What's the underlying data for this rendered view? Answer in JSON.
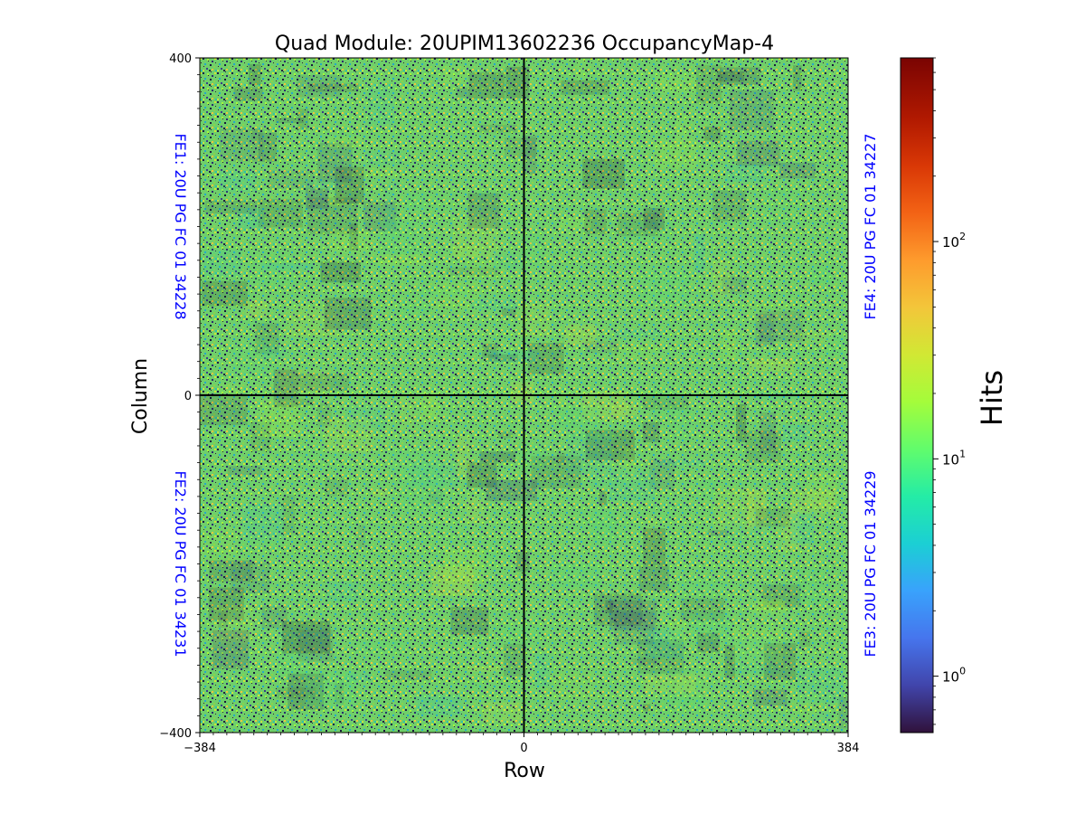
{
  "chart_data": {
    "type": "heatmap",
    "title": "Quad Module: 20UPIM13602236 OccupancyMap-4",
    "xlabel": "Row",
    "ylabel": "Column",
    "xlim": [
      -384,
      384
    ],
    "ylim": [
      -400,
      400
    ],
    "x_ticks": [
      -384,
      0,
      384
    ],
    "y_ticks": [
      400,
      0,
      -400
    ],
    "x_tick_labels": [
      "−384",
      "0",
      "384"
    ],
    "y_tick_labels": [
      "400",
      "0",
      "−400"
    ],
    "grid": false,
    "colormap": "turbo",
    "colorscale": "log",
    "colorbar": {
      "label": "Hits",
      "range": [
        0.55,
        700
      ],
      "ticks": [
        1,
        10,
        100
      ],
      "tick_bases": [
        "10",
        "10",
        "10"
      ],
      "tick_exponents": [
        "0",
        "1",
        "2"
      ]
    },
    "divider_lines": {
      "x": 0,
      "y": 0,
      "color": "#000000"
    },
    "fe_labels": [
      {
        "text": "FE1: 20U PG FC 01 34228",
        "quadrant": "top-left",
        "side": "left"
      },
      {
        "text": "FE2: 20U PG FC 01 34231",
        "quadrant": "bottom-left",
        "side": "left"
      },
      {
        "text": "FE4: 20U PG FC 01 34227",
        "quadrant": "top-right",
        "side": "right"
      },
      {
        "text": "FE3: 20U PG FC 01 34229",
        "quadrant": "bottom-right",
        "side": "right"
      }
    ],
    "fe_label_color": "#0000ff"
  }
}
